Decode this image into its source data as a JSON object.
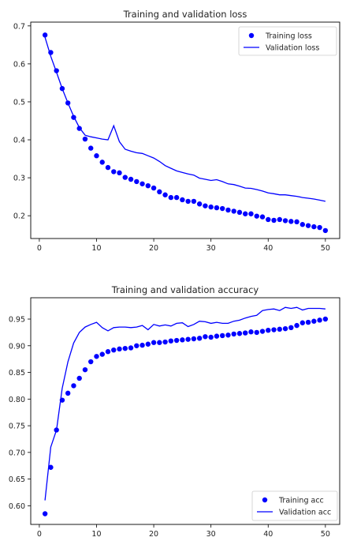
{
  "chart_data": [
    {
      "type": "line",
      "title": "Training and validation loss",
      "xlabel": "",
      "ylabel": "",
      "xlim": [
        -1.5,
        52.5
      ],
      "ylim": [
        0.14,
        0.71
      ],
      "xticks": [
        0,
        10,
        20,
        30,
        40,
        50
      ],
      "yticks": [
        0.2,
        0.3,
        0.4,
        0.5,
        0.6,
        0.7
      ],
      "xtick_labels": [
        "0",
        "10",
        "20",
        "30",
        "40",
        "50"
      ],
      "ytick_labels": [
        "0.2",
        "0.3",
        "0.4",
        "0.5",
        "0.6",
        "0.7"
      ],
      "legend": "top-right",
      "grid": false,
      "series": [
        {
          "name": "Training loss",
          "style": "markers",
          "color": "#0000ff",
          "x": [
            1,
            2,
            3,
            4,
            5,
            6,
            7,
            8,
            9,
            10,
            11,
            12,
            13,
            14,
            15,
            16,
            17,
            18,
            19,
            20,
            21,
            22,
            23,
            24,
            25,
            26,
            27,
            28,
            29,
            30,
            31,
            32,
            33,
            34,
            35,
            36,
            37,
            38,
            39,
            40,
            41,
            42,
            43,
            44,
            45,
            46,
            47,
            48,
            49,
            50
          ],
          "y": [
            0.676,
            0.63,
            0.582,
            0.535,
            0.497,
            0.459,
            0.43,
            0.402,
            0.378,
            0.358,
            0.341,
            0.327,
            0.316,
            0.313,
            0.301,
            0.296,
            0.29,
            0.284,
            0.279,
            0.273,
            0.263,
            0.255,
            0.248,
            0.248,
            0.242,
            0.238,
            0.238,
            0.231,
            0.226,
            0.223,
            0.221,
            0.219,
            0.215,
            0.212,
            0.209,
            0.205,
            0.205,
            0.199,
            0.197,
            0.19,
            0.188,
            0.19,
            0.187,
            0.185,
            0.184,
            0.177,
            0.174,
            0.171,
            0.169,
            0.161
          ]
        },
        {
          "name": "Validation loss",
          "style": "line",
          "color": "#0000ff",
          "x": [
            1,
            2,
            3,
            4,
            5,
            6,
            7,
            8,
            9,
            10,
            11,
            12,
            13,
            14,
            15,
            16,
            17,
            18,
            19,
            20,
            21,
            22,
            23,
            24,
            25,
            26,
            27,
            28,
            29,
            30,
            31,
            32,
            33,
            34,
            35,
            36,
            37,
            38,
            39,
            40,
            41,
            42,
            43,
            44,
            45,
            46,
            47,
            48,
            49,
            50
          ],
          "y": [
            0.67,
            0.62,
            0.578,
            0.535,
            0.497,
            0.462,
            0.432,
            0.412,
            0.408,
            0.405,
            0.402,
            0.4,
            0.437,
            0.395,
            0.375,
            0.37,
            0.366,
            0.364,
            0.358,
            0.352,
            0.343,
            0.332,
            0.325,
            0.318,
            0.314,
            0.31,
            0.307,
            0.299,
            0.296,
            0.293,
            0.295,
            0.29,
            0.284,
            0.282,
            0.278,
            0.273,
            0.272,
            0.269,
            0.265,
            0.26,
            0.258,
            0.255,
            0.255,
            0.253,
            0.251,
            0.248,
            0.246,
            0.244,
            0.241,
            0.238
          ]
        }
      ]
    },
    {
      "type": "line",
      "title": "Training and validation accuracy",
      "xlabel": "",
      "ylabel": "",
      "xlim": [
        -1.5,
        52.5
      ],
      "ylim": [
        0.565,
        0.99
      ],
      "xticks": [
        0,
        10,
        20,
        30,
        40,
        50
      ],
      "yticks": [
        0.6,
        0.65,
        0.7,
        0.75,
        0.8,
        0.85,
        0.9,
        0.95
      ],
      "xtick_labels": [
        "0",
        "10",
        "20",
        "30",
        "40",
        "50"
      ],
      "ytick_labels": [
        "0.60",
        "0.65",
        "0.70",
        "0.75",
        "0.80",
        "0.85",
        "0.90",
        "0.95"
      ],
      "legend": "bottom-right",
      "grid": false,
      "series": [
        {
          "name": "Training acc",
          "style": "markers",
          "color": "#0000ff",
          "x": [
            1,
            2,
            3,
            4,
            5,
            6,
            7,
            8,
            9,
            10,
            11,
            12,
            13,
            14,
            15,
            16,
            17,
            18,
            19,
            20,
            21,
            22,
            23,
            24,
            25,
            26,
            27,
            28,
            29,
            30,
            31,
            32,
            33,
            34,
            35,
            36,
            37,
            38,
            39,
            40,
            41,
            42,
            43,
            44,
            45,
            46,
            47,
            48,
            49,
            50
          ],
          "y": [
            0.585,
            0.672,
            0.742,
            0.798,
            0.811,
            0.825,
            0.839,
            0.855,
            0.87,
            0.88,
            0.884,
            0.889,
            0.892,
            0.894,
            0.895,
            0.896,
            0.9,
            0.901,
            0.903,
            0.906,
            0.906,
            0.907,
            0.909,
            0.91,
            0.911,
            0.912,
            0.913,
            0.914,
            0.917,
            0.916,
            0.918,
            0.919,
            0.92,
            0.922,
            0.923,
            0.924,
            0.926,
            0.925,
            0.927,
            0.929,
            0.93,
            0.931,
            0.932,
            0.934,
            0.938,
            0.943,
            0.944,
            0.946,
            0.948,
            0.95
          ]
        },
        {
          "name": "Validation acc",
          "style": "line",
          "color": "#0000ff",
          "x": [
            1,
            2,
            3,
            4,
            5,
            6,
            7,
            8,
            9,
            10,
            11,
            12,
            13,
            14,
            15,
            16,
            17,
            18,
            19,
            20,
            21,
            22,
            23,
            24,
            25,
            26,
            27,
            28,
            29,
            30,
            31,
            32,
            33,
            34,
            35,
            36,
            37,
            38,
            39,
            40,
            41,
            42,
            43,
            44,
            45,
            46,
            47,
            48,
            49,
            50
          ],
          "y": [
            0.61,
            0.71,
            0.742,
            0.82,
            0.87,
            0.905,
            0.925,
            0.935,
            0.94,
            0.944,
            0.934,
            0.928,
            0.934,
            0.935,
            0.935,
            0.934,
            0.935,
            0.938,
            0.93,
            0.94,
            0.937,
            0.939,
            0.937,
            0.942,
            0.943,
            0.936,
            0.94,
            0.946,
            0.945,
            0.942,
            0.944,
            0.942,
            0.942,
            0.946,
            0.948,
            0.952,
            0.955,
            0.957,
            0.966,
            0.968,
            0.969,
            0.966,
            0.972,
            0.97,
            0.972,
            0.967,
            0.97,
            0.97,
            0.97,
            0.969
          ]
        }
      ]
    }
  ]
}
